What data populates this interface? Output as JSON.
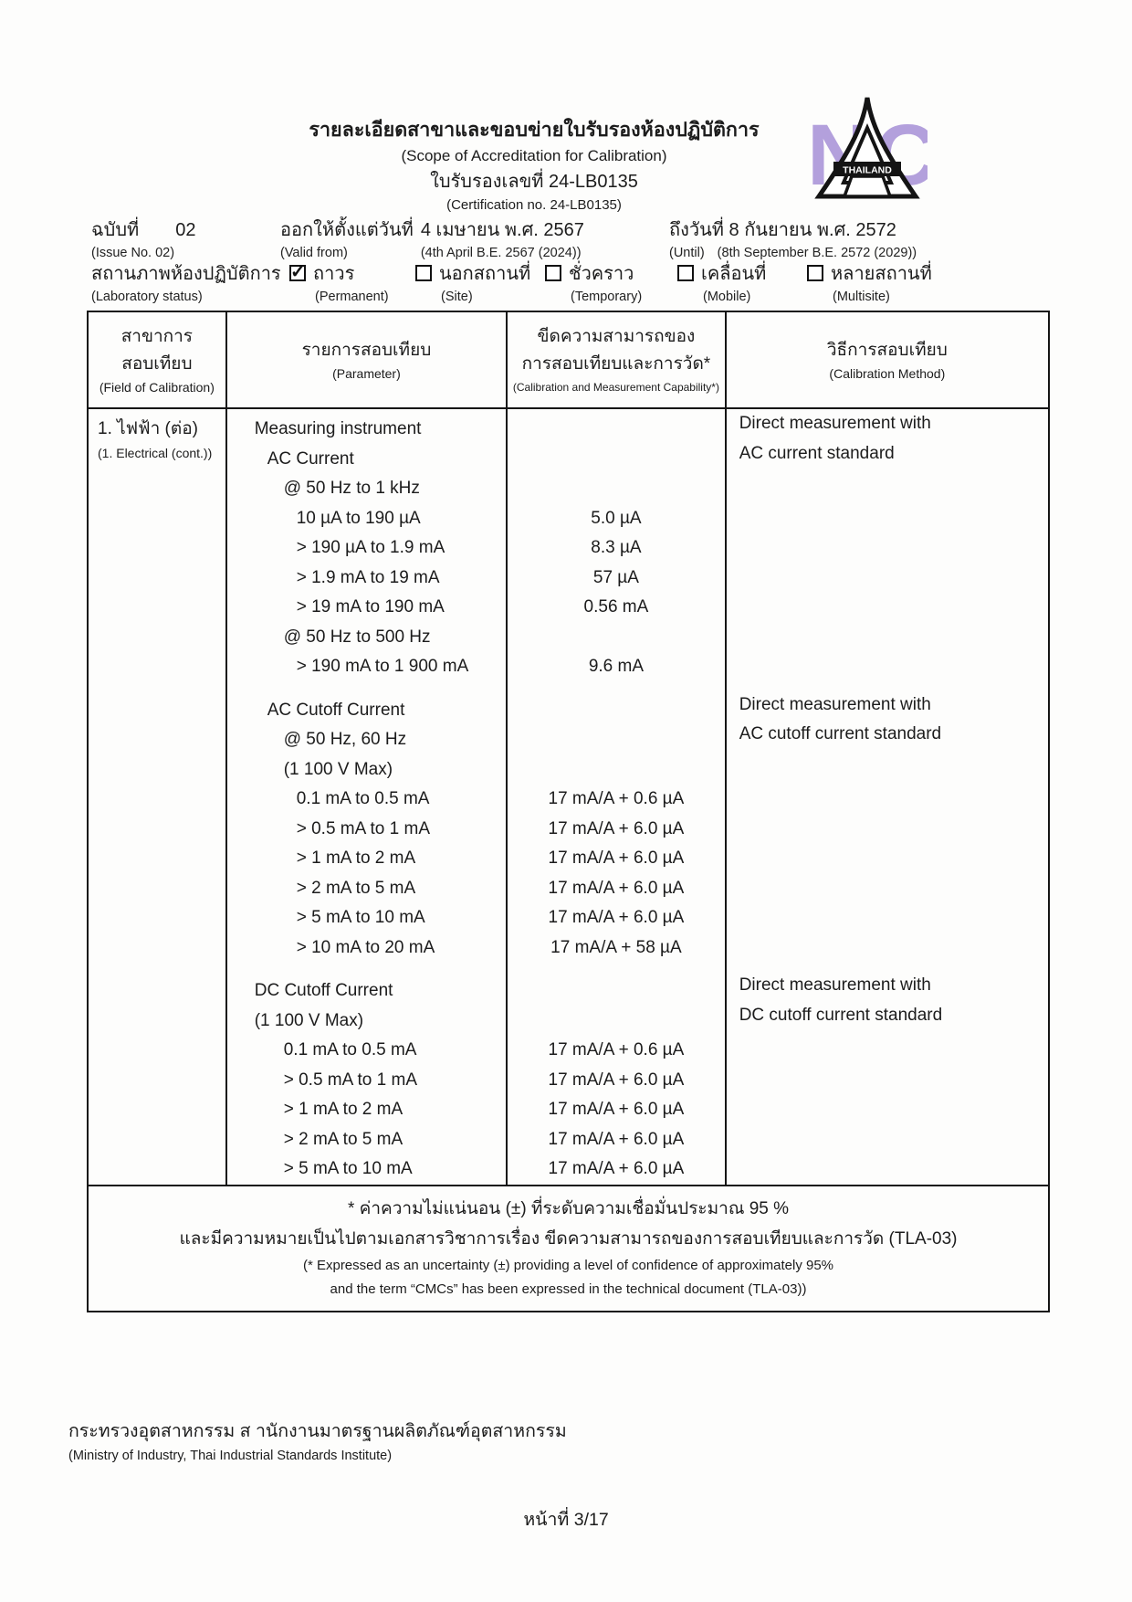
{
  "header": {
    "title_th": "รายละเอียดสาขาและขอบข่ายใบรับรองห้องปฏิบัติการ",
    "title_en": "(Scope of Accreditation for Calibration)",
    "cert_no_th": "ใบรับรองเลขที่ 24-LB0135",
    "cert_no_en": "(Certification no. 24-LB0135)",
    "logo_banner": "THAILAND",
    "logo_letters": "NC",
    "logo_purple": "#b3a0dc"
  },
  "issue": {
    "label_th": "ฉบับที่",
    "number": "02",
    "label_en": "(Issue No. 02)",
    "valid_label_th": "ออกให้ตั้งแต่วันที่",
    "valid_date_th": "4 เมษายน พ.ศ. 2567",
    "valid_label_en": "(Valid from)",
    "valid_date_en": "(4th April B.E. 2567 (2024))",
    "until_th": "ถึงวันที่ 8 กันยายน พ.ศ. 2572",
    "until_label_en": "(Until)",
    "until_date_en": "(8th September B.E. 2572 (2029))"
  },
  "status": {
    "label_th": "สถานภาพห้องปฏิบัติการ",
    "label_en": "(Laboratory status)",
    "options": [
      {
        "th": "ถาวร",
        "en": "(Permanent)",
        "checked": true
      },
      {
        "th": "นอกสถานที่",
        "en": "(Site)",
        "checked": false
      },
      {
        "th": "ชั่วคราว",
        "en": "(Temporary)",
        "checked": false
      },
      {
        "th": "เคลื่อนที่",
        "en": "(Mobile)",
        "checked": false
      },
      {
        "th": "หลายสถานที่",
        "en": "(Multisite)",
        "checked": false
      }
    ]
  },
  "table": {
    "columns": [
      {
        "th1": "สาขาการ",
        "th2": "สอบเทียบ",
        "en": "(Field of Calibration)"
      },
      {
        "th1": "รายการสอบเทียบ",
        "en": "(Parameter)"
      },
      {
        "th1": "ขีดความสามารถของ",
        "th2": "การสอบเทียบและการวัด*",
        "en": "(Calibration and Measurement Capability*)"
      },
      {
        "th1": "วิธีการสอบเทียบ",
        "en": "(Calibration Method)"
      }
    ],
    "field_th": "1. ไฟฟ้า (ต่อ)",
    "field_en": "(1. Electrical (cont.))",
    "rows": [
      {
        "param": "Measuring instrument",
        "indent": 0,
        "cmc": "",
        "method": "Direct measurement with"
      },
      {
        "param": "AC Current",
        "indent": 1,
        "cmc": "",
        "method": "AC current standard"
      },
      {
        "param": "@ 50 Hz to 1 kHz",
        "indent": 2,
        "cmc": "",
        "method": ""
      },
      {
        "param": "10 µA to 190 µA",
        "indent": 3,
        "cmc": "5.0 µA",
        "method": ""
      },
      {
        "param": "> 190 µA to 1.9 mA",
        "indent": 3,
        "cmc": "8.3 µA",
        "method": ""
      },
      {
        "param": "> 1.9 mA to 19 mA",
        "indent": 3,
        "cmc": "57 µA",
        "method": ""
      },
      {
        "param": "> 19 mA to 190 mA",
        "indent": 3,
        "cmc": "0.56 mA",
        "method": ""
      },
      {
        "param": "@ 50 Hz to 500 Hz",
        "indent": 2,
        "cmc": "",
        "method": ""
      },
      {
        "param": "> 190 mA to 1 900 mA",
        "indent": 3,
        "cmc": "9.6 mA",
        "method": ""
      },
      {
        "param": "AC Cutoff Current",
        "indent": 1,
        "cmc": "",
        "method": "Direct measurement with",
        "gap": true
      },
      {
        "param": "@ 50 Hz, 60 Hz",
        "indent": 2,
        "cmc": "",
        "method": "AC cutoff current standard"
      },
      {
        "param": "(1 100 V Max)",
        "indent": 2,
        "cmc": "",
        "method": ""
      },
      {
        "param": "0.1 mA to 0.5 mA",
        "indent": 3,
        "cmc": "17 mA/A + 0.6 µA",
        "method": ""
      },
      {
        "param": "> 0.5 mA to 1 mA",
        "indent": 3,
        "cmc": "17 mA/A + 6.0 µA",
        "method": ""
      },
      {
        "param": "> 1 mA to 2 mA",
        "indent": 3,
        "cmc": "17 mA/A + 6.0 µA",
        "method": ""
      },
      {
        "param": "> 2 mA to 5 mA",
        "indent": 3,
        "cmc": "17 mA/A + 6.0 µA",
        "method": ""
      },
      {
        "param": "> 5 mA to 10 mA",
        "indent": 3,
        "cmc": "17 mA/A + 6.0 µA",
        "method": ""
      },
      {
        "param": "> 10 mA to 20 mA",
        "indent": 3,
        "cmc": "17 mA/A + 58 µA",
        "method": ""
      },
      {
        "param": "DC Cutoff Current",
        "indent": 0,
        "cmc": "",
        "method": "Direct measurement with",
        "gap": true
      },
      {
        "param": "(1 100 V Max)",
        "indent": 0,
        "cmc": "",
        "method": "DC cutoff current standard"
      },
      {
        "param": "0.1 mA to 0.5 mA",
        "indent": 2,
        "cmc": "17 mA/A + 0.6 µA",
        "method": ""
      },
      {
        "param": "> 0.5 mA to 1 mA",
        "indent": 2,
        "cmc": "17 mA/A + 6.0 µA",
        "method": ""
      },
      {
        "param": "> 1 mA to 2 mA",
        "indent": 2,
        "cmc": "17 mA/A + 6.0 µA",
        "method": ""
      },
      {
        "param": "> 2 mA to 5 mA",
        "indent": 2,
        "cmc": "17 mA/A + 6.0 µA",
        "method": ""
      },
      {
        "param": "> 5 mA to 10 mA",
        "indent": 2,
        "cmc": "17 mA/A + 6.0 µA",
        "method": ""
      }
    ]
  },
  "note": {
    "line1_th": "* ค่าความไม่แน่นอน (±) ที่ระดับความเชื่อมั่นประมาณ 95 %",
    "line2_th": "และมีความหมายเป็นไปตามเอกสารวิชาการเรื่อง ขีดความสามารถของการสอบเทียบและการวัด (TLA-03)",
    "line3_en": "(* Expressed as an uncertainty (±) providing a level of confidence of approximately 95%",
    "line4_en": "and the term “CMCs” has been expressed in the technical document (TLA-03))"
  },
  "footer": {
    "ministry_th": "กระทรวงอุตสาหกรรม  ส านักงานมาตรฐานผลิตภัณฑ์อุตสาหกรรม",
    "ministry_en": "(Ministry of Industry, Thai Industrial Standards Institute)",
    "page": "หน้าที่ 3/17"
  }
}
